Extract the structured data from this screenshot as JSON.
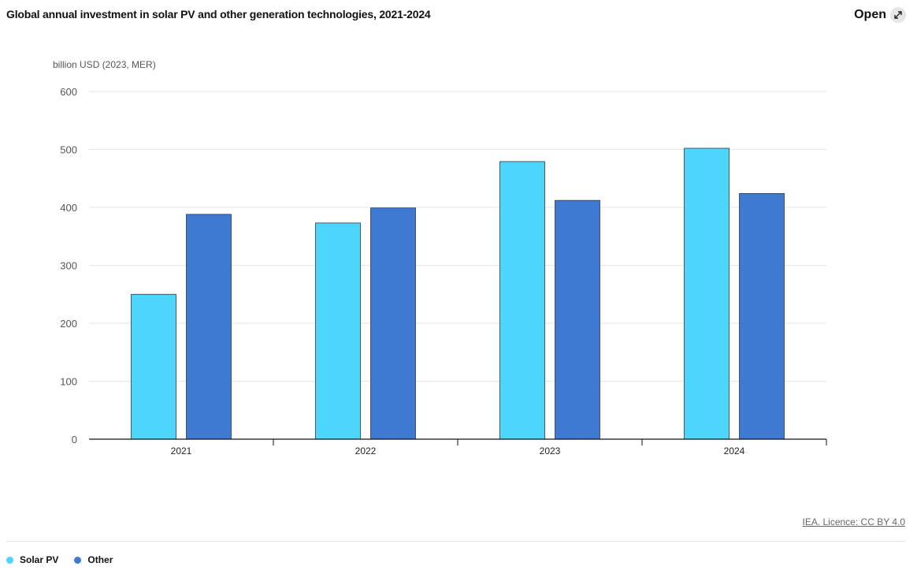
{
  "title": "Global annual investment in solar PV and other generation technologies, 2021-2024",
  "open_button": {
    "label": "Open",
    "icon": "expand-icon"
  },
  "source": "IEA. Licence: CC BY 4.0",
  "colors": {
    "solar_pv": "#4dd5fb",
    "other": "#3e79d2",
    "outline": "#2b3a4a"
  },
  "chart_data": {
    "type": "bar",
    "ylabel": "billion USD (2023, MER)",
    "xlabel": "",
    "categories": [
      "2021",
      "2022",
      "2023",
      "2024"
    ],
    "series": [
      {
        "name": "Solar PV",
        "values": [
          250,
          373,
          479,
          502
        ]
      },
      {
        "name": "Other",
        "values": [
          388,
          399,
          412,
          424
        ]
      }
    ],
    "ylim": [
      0,
      600
    ],
    "yticks": [
      0,
      100,
      200,
      300,
      400,
      500,
      600
    ],
    "grid": true,
    "legend_position": "bottom-left"
  }
}
